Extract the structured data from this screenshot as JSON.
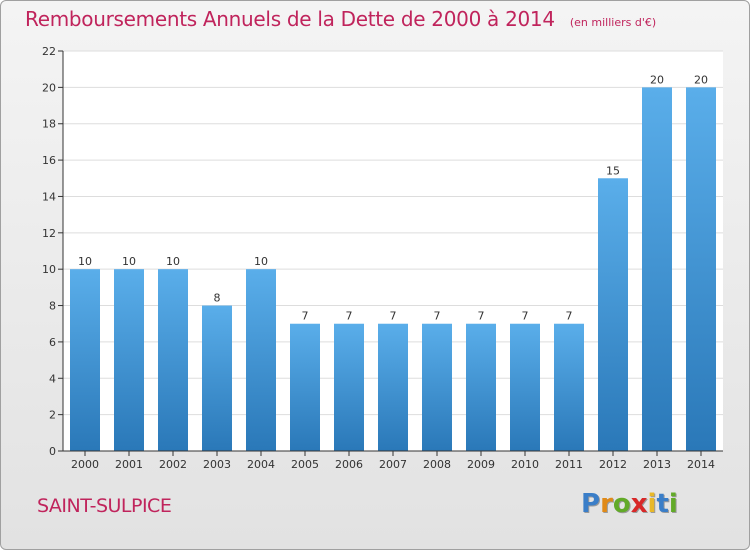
{
  "title": "Remboursements Annuels de la Dette de 2000 à 2014",
  "subtitle": "(en milliers d'€)",
  "commune": "SAINT-SULPICE",
  "logo": {
    "letters": [
      "P",
      "r",
      "o",
      "x",
      "i",
      "t",
      "i"
    ],
    "colors": [
      "#3a7ec8",
      "#e08a18",
      "#62aa28",
      "#d82828",
      "#e8b828",
      "#3a7ec8",
      "#62aa28"
    ]
  },
  "colors": {
    "text": "#c0245c",
    "bar_light": "#5aaeea",
    "bar_dark": "#2a78b8",
    "axis": "#333333",
    "grid": "#dddddd"
  },
  "chart_data": {
    "type": "bar",
    "categories": [
      "2000",
      "2001",
      "2002",
      "2003",
      "2004",
      "2005",
      "2006",
      "2007",
      "2008",
      "2009",
      "2010",
      "2011",
      "2012",
      "2013",
      "2014"
    ],
    "values": [
      10,
      10,
      10,
      8,
      10,
      7,
      7,
      7,
      7,
      7,
      7,
      7,
      15,
      20,
      20
    ],
    "ylim": [
      0,
      22
    ],
    "yticks": [
      0,
      2,
      4,
      6,
      8,
      10,
      12,
      14,
      16,
      18,
      20,
      22
    ],
    "grid": true,
    "xlabel": "",
    "ylabel": ""
  }
}
